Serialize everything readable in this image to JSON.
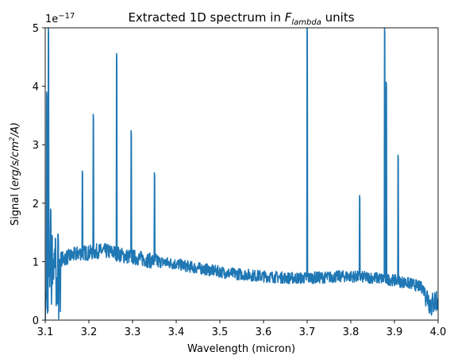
{
  "chart_data": {
    "type": "line",
    "title_main": "Extracted 1D spectrum in ",
    "title_math": "F",
    "title_sub": "lambda",
    "title_tail": " units",
    "xlabel": "Wavelength (micron)",
    "ylabel_main": "Signal (",
    "ylabel_math": "erg/s/cm",
    "ylabel_sup": "2",
    "ylabel_tail": "/A)",
    "offset_base": "1e",
    "offset_exp": "−17",
    "xlim": [
      3.1,
      4.0
    ],
    "ylim": [
      0,
      5
    ],
    "y_scale_factor": 1e-17,
    "xticks": [
      3.1,
      3.2,
      3.3,
      3.4,
      3.5,
      3.6,
      3.7,
      3.8,
      3.9,
      4.0
    ],
    "xtick_labels": [
      "3.1",
      "3.2",
      "3.3",
      "3.4",
      "3.5",
      "3.6",
      "3.7",
      "3.8",
      "3.9",
      "4.0"
    ],
    "yticks": [
      0,
      1,
      2,
      3,
      4,
      5
    ],
    "ytick_labels": [
      "0",
      "1",
      "2",
      "3",
      "4",
      "5"
    ],
    "grid": false,
    "series_color": "#1f77b4",
    "continuum": [
      [
        3.1,
        0.0
      ],
      [
        3.105,
        0.6
      ],
      [
        3.11,
        0.95
      ],
      [
        3.12,
        1.0
      ],
      [
        3.13,
        1.05
      ],
      [
        3.14,
        1.05
      ],
      [
        3.16,
        1.1
      ],
      [
        3.18,
        1.15
      ],
      [
        3.2,
        1.15
      ],
      [
        3.22,
        1.18
      ],
      [
        3.24,
        1.18
      ],
      [
        3.26,
        1.15
      ],
      [
        3.28,
        1.1
      ],
      [
        3.3,
        1.08
      ],
      [
        3.32,
        1.05
      ],
      [
        3.34,
        1.02
      ],
      [
        3.36,
        1.0
      ],
      [
        3.38,
        0.98
      ],
      [
        3.4,
        0.96
      ],
      [
        3.42,
        0.93
      ],
      [
        3.44,
        0.9
      ],
      [
        3.46,
        0.88
      ],
      [
        3.48,
        0.85
      ],
      [
        3.5,
        0.83
      ],
      [
        3.52,
        0.8
      ],
      [
        3.54,
        0.79
      ],
      [
        3.56,
        0.78
      ],
      [
        3.58,
        0.76
      ],
      [
        3.6,
        0.75
      ],
      [
        3.62,
        0.74
      ],
      [
        3.64,
        0.73
      ],
      [
        3.66,
        0.72
      ],
      [
        3.68,
        0.72
      ],
      [
        3.7,
        0.72
      ],
      [
        3.72,
        0.73
      ],
      [
        3.74,
        0.73
      ],
      [
        3.76,
        0.74
      ],
      [
        3.78,
        0.75
      ],
      [
        3.8,
        0.75
      ],
      [
        3.82,
        0.74
      ],
      [
        3.84,
        0.73
      ],
      [
        3.86,
        0.72
      ],
      [
        3.88,
        0.7
      ],
      [
        3.9,
        0.68
      ],
      [
        3.92,
        0.65
      ],
      [
        3.94,
        0.62
      ],
      [
        3.955,
        0.58
      ],
      [
        3.965,
        0.55
      ],
      [
        3.975,
        0.4
      ],
      [
        3.985,
        0.25
      ],
      [
        3.995,
        0.35
      ],
      [
        4.0,
        0.3
      ]
    ],
    "emission_lines": [
      {
        "x": 3.103,
        "peak": 3.9
      },
      {
        "x": 3.107,
        "peak": 5.0
      },
      {
        "x": 3.112,
        "peak": 1.9
      },
      {
        "x": 3.123,
        "peak": 1.4
      },
      {
        "x": 3.185,
        "peak": 2.55
      },
      {
        "x": 3.21,
        "peak": 3.52
      },
      {
        "x": 3.263,
        "peak": 4.56
      },
      {
        "x": 3.297,
        "peak": 3.24
      },
      {
        "x": 3.35,
        "peak": 2.52
      },
      {
        "x": 3.7,
        "peak": 5.0
      },
      {
        "x": 3.82,
        "peak": 2.13
      },
      {
        "x": 3.877,
        "peak": 5.0
      },
      {
        "x": 3.881,
        "peak": 4.07
      },
      {
        "x": 3.908,
        "peak": 2.82
      }
    ]
  }
}
